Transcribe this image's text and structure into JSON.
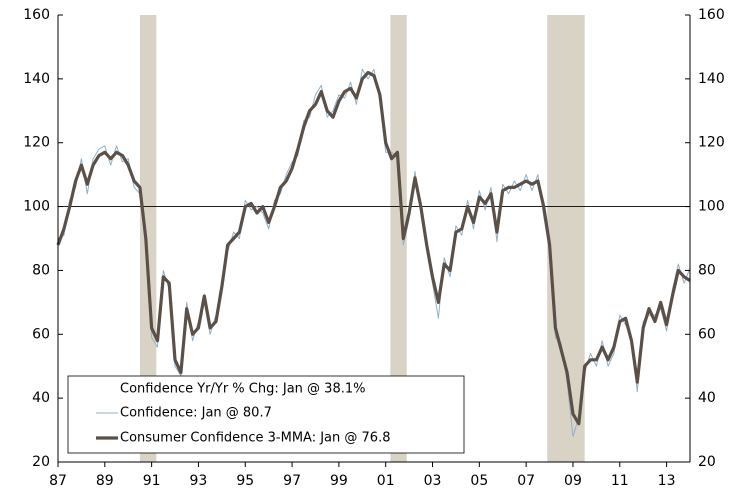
{
  "chart_data": {
    "type": "line",
    "x": [
      1987,
      1987.25,
      1987.5,
      1987.75,
      1988,
      1988.25,
      1988.5,
      1988.75,
      1989,
      1989.25,
      1989.5,
      1989.75,
      1990,
      1990.25,
      1990.5,
      1990.75,
      1991,
      1991.25,
      1991.5,
      1991.75,
      1992,
      1992.25,
      1992.5,
      1992.75,
      1993,
      1993.25,
      1993.5,
      1993.75,
      1994,
      1994.25,
      1994.5,
      1994.75,
      1995,
      1995.25,
      1995.5,
      1995.75,
      1996,
      1996.25,
      1996.5,
      1996.75,
      1997,
      1997.25,
      1997.5,
      1997.75,
      1998,
      1998.25,
      1998.5,
      1998.75,
      1999,
      1999.25,
      1999.5,
      1999.75,
      2000,
      2000.25,
      2000.5,
      2000.75,
      2001,
      2001.25,
      2001.5,
      2001.75,
      2002,
      2002.25,
      2002.5,
      2002.75,
      2003,
      2003.25,
      2003.5,
      2003.75,
      2004,
      2004.25,
      2004.5,
      2004.75,
      2005,
      2005.25,
      2005.5,
      2005.75,
      2006,
      2006.25,
      2006.5,
      2006.75,
      2007,
      2007.25,
      2007.5,
      2007.75,
      2008,
      2008.25,
      2008.5,
      2008.75,
      2009,
      2009.25,
      2009.5,
      2009.75,
      2010,
      2010.25,
      2010.5,
      2010.75,
      2011,
      2011.25,
      2011.5,
      2011.75,
      2012,
      2012.25,
      2012.5,
      2012.75,
      2013,
      2013.25,
      2013.5,
      2013.75,
      2014
    ],
    "series": [
      {
        "name": "Confidence: Jan @ 80.7",
        "color": "#8fb0cc",
        "width": 1,
        "values": [
          90,
          91,
          102,
          106,
          115,
          104,
          115,
          118,
          119,
          113,
          119,
          114,
          115,
          106,
          104,
          88,
          59,
          56,
          80,
          74,
          50,
          47,
          70,
          58,
          64,
          70,
          60,
          66,
          77,
          86,
          92,
          90,
          102,
          99,
          100,
          98,
          93,
          102,
          104,
          110,
          114,
          116,
          127,
          128,
          135,
          138,
          128,
          130,
          135,
          134,
          139,
          132,
          143,
          140,
          143,
          133,
          117,
          117,
          115,
          88,
          96,
          111,
          98,
          86,
          76,
          65,
          84,
          78,
          94,
          91,
          102,
          93,
          105,
          99,
          106,
          89,
          107,
          104,
          108,
          105,
          110,
          105,
          110,
          97,
          86,
          59,
          57,
          45,
          28,
          34,
          48,
          54,
          50,
          58,
          50,
          54,
          66,
          63,
          59,
          42,
          64,
          66,
          66,
          68,
          61,
          74,
          82,
          76,
          80.7
        ]
      },
      {
        "name": "Consumer Confidence 3-MMA: Jan @ 76.8",
        "color": "#5b5047",
        "width": 3.2,
        "values": [
          88,
          93,
          100,
          108,
          113,
          107,
          113,
          116,
          117,
          115,
          117,
          116,
          113,
          108,
          106,
          90,
          62,
          58,
          78,
          76,
          52,
          48,
          68,
          60,
          62,
          72,
          62,
          64,
          75,
          88,
          90,
          92,
          100,
          101,
          98,
          100,
          95,
          100,
          106,
          108,
          112,
          118,
          125,
          130,
          132,
          136,
          130,
          128,
          133,
          136,
          137,
          134,
          140,
          142,
          141,
          135,
          120,
          115,
          117,
          90,
          98,
          109,
          100,
          88,
          78,
          70,
          82,
          80,
          92,
          93,
          100,
          95,
          103,
          101,
          104,
          92,
          105,
          106,
          106,
          107,
          108,
          107,
          108,
          100,
          88,
          62,
          55,
          48,
          35,
          32,
          50,
          52,
          52,
          56,
          52,
          56,
          64,
          65,
          58,
          45,
          62,
          68,
          64,
          70,
          63,
          72,
          80,
          78,
          76.8
        ]
      }
    ],
    "legend_note": "Confidence Yr/Yr % Chg: Jan @ 38.1%",
    "xlim": [
      1987,
      2014
    ],
    "xticks": [
      {
        "value": 1987,
        "label": "87"
      },
      {
        "value": 1989,
        "label": "89"
      },
      {
        "value": 1991,
        "label": "91"
      },
      {
        "value": 1993,
        "label": "93"
      },
      {
        "value": 1995,
        "label": "95"
      },
      {
        "value": 1997,
        "label": "97"
      },
      {
        "value": 1999,
        "label": "99"
      },
      {
        "value": 2001,
        "label": "01"
      },
      {
        "value": 2003,
        "label": "03"
      },
      {
        "value": 2005,
        "label": "05"
      },
      {
        "value": 2007,
        "label": "07"
      },
      {
        "value": 2009,
        "label": "09"
      },
      {
        "value": 2011,
        "label": "11"
      },
      {
        "value": 2013,
        "label": "13"
      }
    ],
    "ylim": [
      20,
      160
    ],
    "yticks": [
      20,
      40,
      60,
      80,
      100,
      120,
      140,
      160
    ],
    "y2lim": [
      20,
      160
    ],
    "y2ticks": [
      20,
      40,
      60,
      80,
      100,
      120,
      140,
      160
    ],
    "reference_line": 100,
    "shaded_ranges": [
      [
        1990.5,
        1991.2
      ],
      [
        2001.2,
        2001.9
      ],
      [
        2007.9,
        2009.5
      ]
    ],
    "shade_color": "#d9d3c6",
    "legend": "lower-left"
  }
}
